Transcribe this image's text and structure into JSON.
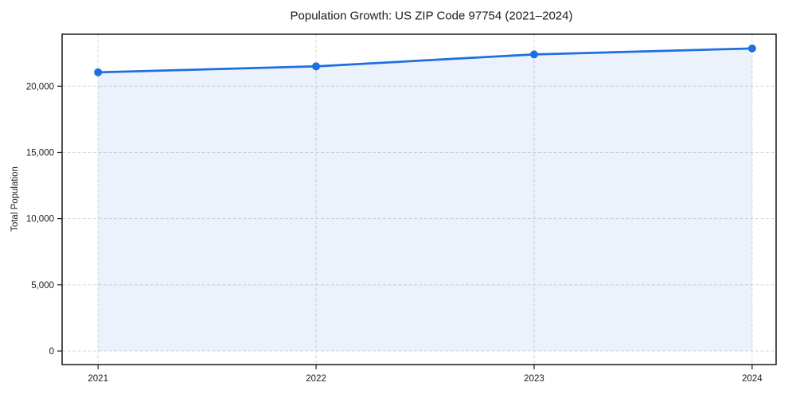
{
  "chart_data": {
    "type": "area",
    "title": "Population Growth: US ZIP Code 97754 (2021–2024)",
    "xlabel": "",
    "ylabel": "Total Population",
    "series": [
      {
        "name": "Total Population",
        "x": [
          2021,
          2022,
          2023,
          2024
        ],
        "values": [
          21050,
          21500,
          22400,
          22850
        ]
      }
    ],
    "xticks": [
      2021,
      2022,
      2023,
      2024
    ],
    "xtick_labels": [
      "2021",
      "2022",
      "2023",
      "2024"
    ],
    "yticks": [
      0,
      5000,
      10000,
      15000,
      20000
    ],
    "ytick_labels": [
      "0",
      "5,000",
      "10,000",
      "15,000",
      "20,000"
    ],
    "xlim": [
      2020.835,
      2024.11
    ],
    "ylim": [
      -1022,
      23925
    ],
    "fill_baseline": 0,
    "grid": true,
    "legend": "none",
    "colors": {
      "line": "#1f6fe0",
      "fill": "#1f6fe0",
      "fill_opacity": "0.09",
      "grid": "#d7d7d7",
      "frame": "#1a1a1a",
      "text": "#1a1a1a",
      "background": "#ffffff"
    }
  }
}
